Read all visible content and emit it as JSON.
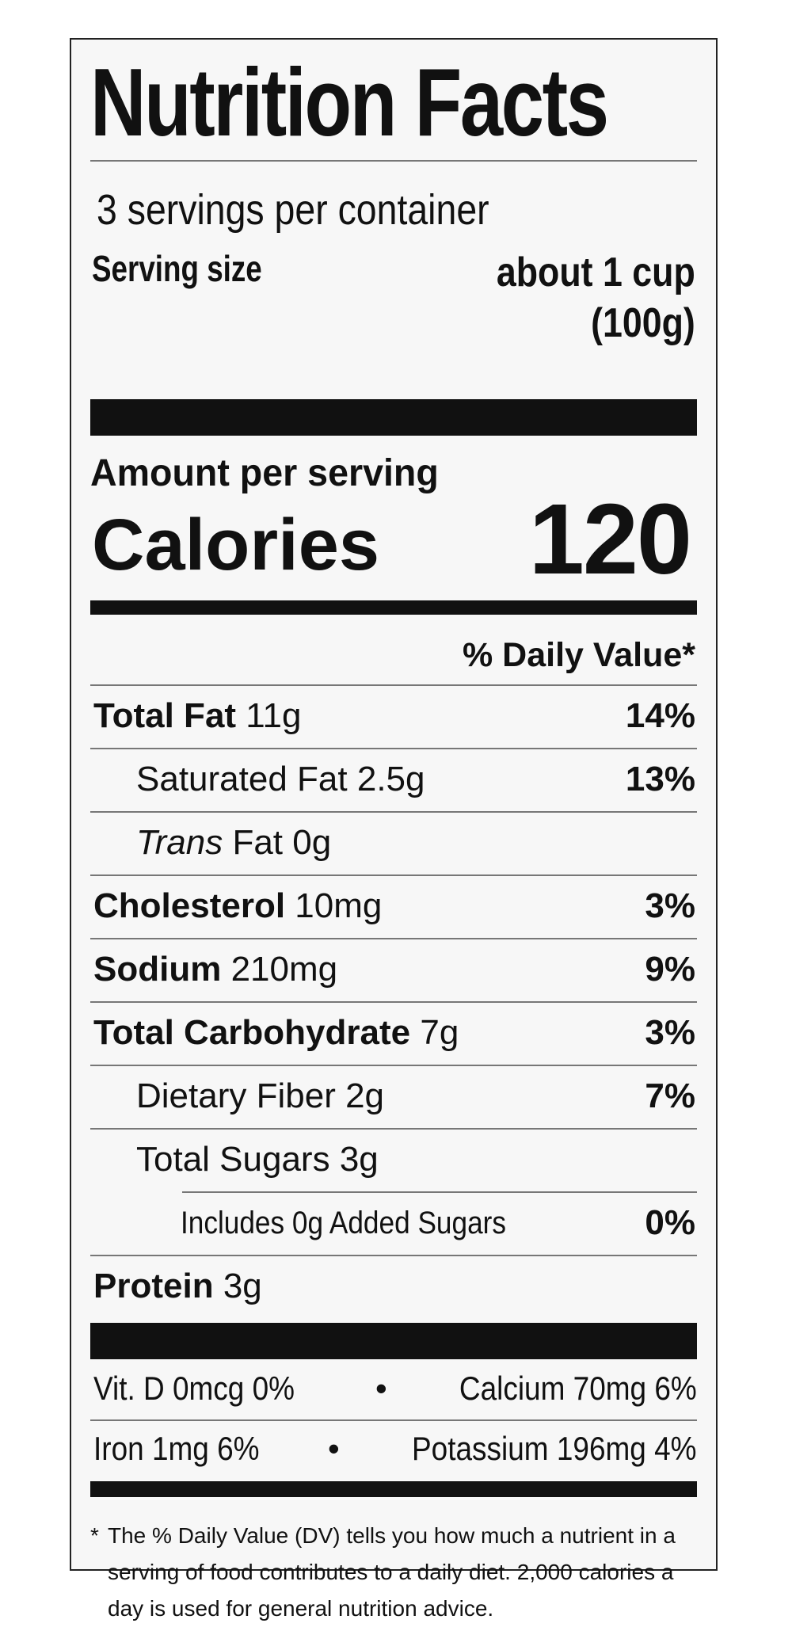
{
  "label": {
    "title": "Nutrition Facts",
    "servings_per_container": "3 servings per container",
    "serving_size_label": "Serving size",
    "serving_size_value_line1": "about 1 cup",
    "serving_size_value_line2": "(100g)",
    "amount_per_serving": "Amount per serving",
    "calories_label": "Calories",
    "calories_value": "120",
    "daily_value_header": "% Daily Value*",
    "nutrients": [
      {
        "name": "Total Fat",
        "amount": "11g",
        "dv": "14%"
      },
      {
        "name": "Saturated Fat",
        "amount": "2.5g",
        "dv": "13%"
      },
      {
        "name": "Trans",
        "suffix": "Fat 0g",
        "dv": ""
      },
      {
        "name": "Cholesterol",
        "amount": "10mg",
        "dv": "3%"
      },
      {
        "name": "Sodium",
        "amount": "210mg",
        "dv": "9%"
      },
      {
        "name": "Total Carbohydrate",
        "amount": "7g",
        "dv": "3%"
      },
      {
        "name": "Dietary Fiber",
        "amount": "2g",
        "dv": "7%"
      },
      {
        "name": "Total Sugars",
        "amount": "3g",
        "dv": ""
      },
      {
        "name": "Includes 0g Added Sugars",
        "amount": "",
        "dv": "0%"
      },
      {
        "name": "Protein",
        "amount": "3g",
        "dv": ""
      }
    ],
    "vitamins": [
      {
        "left": "Vit. D 0mcg 0%",
        "right": "Calcium 70mg 6%"
      },
      {
        "left": "Iron 1mg 6%",
        "right": "Potassium 196mg 4%"
      }
    ],
    "bullet": "•",
    "footnote_star": "*",
    "footnote": "The % Daily Value (DV) tells you how much a nutrient in a serving of food contributes to a daily diet. 2,000 calories a day is used for general nutrition advice."
  }
}
